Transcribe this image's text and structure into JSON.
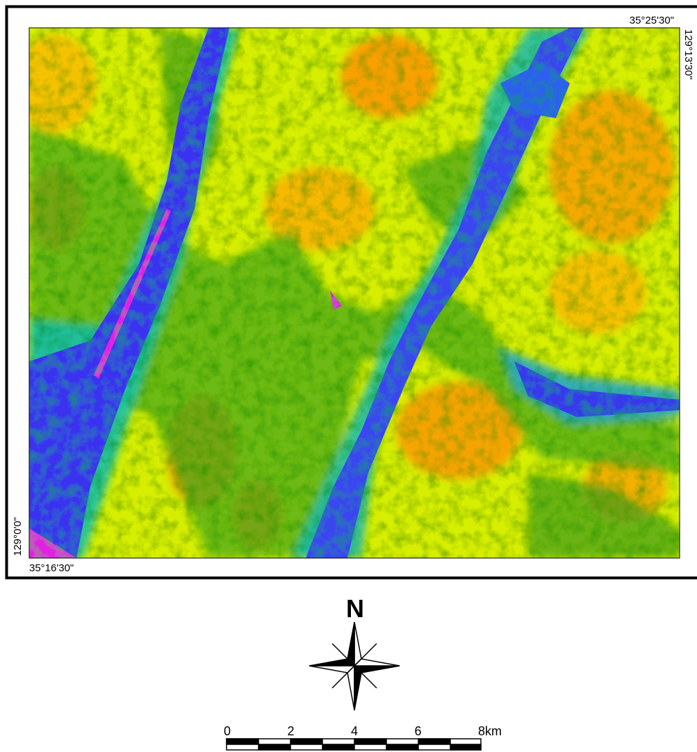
{
  "map": {
    "corner_labels": {
      "top_right_lat": "35°25'30\"",
      "right_lon": "129°13'30\"",
      "left_lon": "129°0'0\"",
      "bottom_left_lat": "35°16'30\""
    },
    "north_arrow": {
      "label": "N"
    },
    "scale_bar": {
      "labels": [
        "0",
        "2",
        "4",
        "6",
        "8km"
      ]
    }
  }
}
